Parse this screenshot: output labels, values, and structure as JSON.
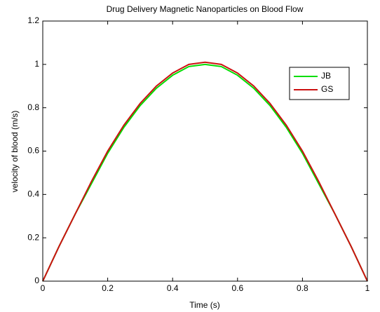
{
  "chart_data": {
    "type": "line",
    "title": "Drug Delivery Magnetic Nanoparticles on Blood Flow",
    "xlabel": "Time (s)",
    "ylabel": "velocity of blood (m/s)",
    "x": [
      0,
      0.05,
      0.1,
      0.15,
      0.2,
      0.25,
      0.3,
      0.35,
      0.4,
      0.45,
      0.5,
      0.55,
      0.6,
      0.65,
      0.7,
      0.75,
      0.8,
      0.85,
      0.9,
      0.95,
      1
    ],
    "series": [
      {
        "name": "JB",
        "color": "#00dd00",
        "values": [
          0,
          0.16,
          0.31,
          0.45,
          0.59,
          0.71,
          0.81,
          0.89,
          0.95,
          0.99,
          1.0,
          0.99,
          0.95,
          0.89,
          0.81,
          0.71,
          0.59,
          0.45,
          0.31,
          0.16,
          0
        ]
      },
      {
        "name": "GS",
        "color": "#cc1111",
        "values": [
          0,
          0.16,
          0.31,
          0.46,
          0.6,
          0.72,
          0.82,
          0.9,
          0.96,
          1.0,
          1.01,
          1.0,
          0.96,
          0.9,
          0.82,
          0.72,
          0.6,
          0.46,
          0.31,
          0.16,
          0
        ]
      }
    ],
    "xlim": [
      0,
      1
    ],
    "xticks": [
      0,
      0.2,
      0.4,
      0.6,
      0.8,
      1
    ],
    "ylim": [
      0,
      1.2
    ],
    "yticks": [
      0,
      0.2,
      0.4,
      0.6,
      0.8,
      1,
      1.2
    ],
    "grid": false,
    "legend": "upper right"
  }
}
